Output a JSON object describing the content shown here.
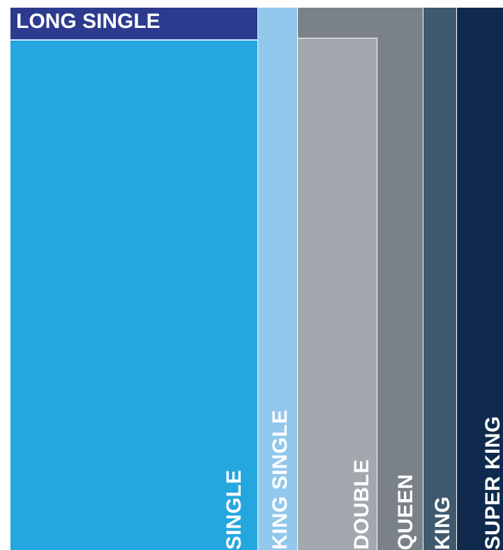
{
  "beds": {
    "super_king": {
      "label": "SUPER KING",
      "color": "#0f2a4d"
    },
    "king": {
      "label": "KING",
      "color": "#3f5a6e"
    },
    "queen": {
      "label": "QUEEN",
      "color": "#7b8188"
    },
    "double": {
      "label": "DOUBLE",
      "color": "#a3a8ae"
    },
    "king_single": {
      "label": "KING SINGLE",
      "color": "#92c8ec"
    },
    "long_single": {
      "label": "LONG SINGLE",
      "color": "#2d3b8e"
    },
    "single": {
      "label": "SINGLE",
      "color": "#24a6de"
    }
  }
}
